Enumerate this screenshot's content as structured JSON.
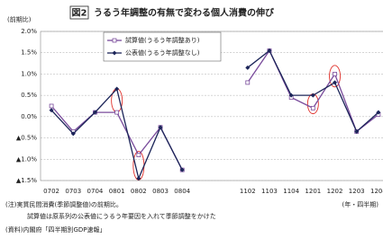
{
  "chart_data": {
    "type": "line",
    "title_label": "図2",
    "title": "うるう年調整の有無で変わる個人消費の伸び",
    "y_axis_label": "(前期比)",
    "x_axis_label": "(年・四半期)",
    "categories": [
      "0702",
      "0703",
      "0704",
      "0801",
      "0802",
      "0803",
      "0804",
      null,
      null,
      "1102",
      "1103",
      "1104",
      "1201",
      "1202",
      "1203",
      "1204"
    ],
    "series": [
      {
        "name": "試算値(うるう年調整あり)",
        "color": "#7a4c9c",
        "marker": "open-square",
        "values": [
          0.25,
          -0.35,
          0.1,
          0.1,
          -0.9,
          -0.25,
          -1.25,
          null,
          null,
          0.8,
          1.55,
          0.45,
          0.2,
          1.0,
          -0.35,
          0.05
        ]
      },
      {
        "name": "公表値(うるう年調整なし)",
        "color": "#1c2559",
        "marker": "diamond",
        "values": [
          0.15,
          -0.4,
          0.1,
          0.65,
          -1.45,
          -0.25,
          -1.25,
          null,
          null,
          1.15,
          1.55,
          0.5,
          0.5,
          0.8,
          -0.35,
          0.1
        ]
      }
    ],
    "ylim": [
      -1.5,
      2.0
    ],
    "yticks": [
      {
        "value": -1.5,
        "label": "▲1.5%"
      },
      {
        "value": -1.0,
        "label": "▲1.0%"
      },
      {
        "value": -0.5,
        "label": "▲0.5%"
      },
      {
        "value": 0.0,
        "label": "0.0%"
      },
      {
        "value": 0.5,
        "label": "0.5%"
      },
      {
        "value": 1.0,
        "label": "1.0%"
      },
      {
        "value": 1.5,
        "label": "1.5%"
      },
      {
        "value": 2.0,
        "label": "2.0%"
      }
    ],
    "grid": true,
    "legend": "top-left",
    "notes": [
      "(注)実質民間消費(季節調整値)の前期比。",
      "試算値は原系列の公表値にうるう年要因を入れて季節調整をかけた",
      "(資料)内閣府「四半期別GDP速報」"
    ]
  }
}
